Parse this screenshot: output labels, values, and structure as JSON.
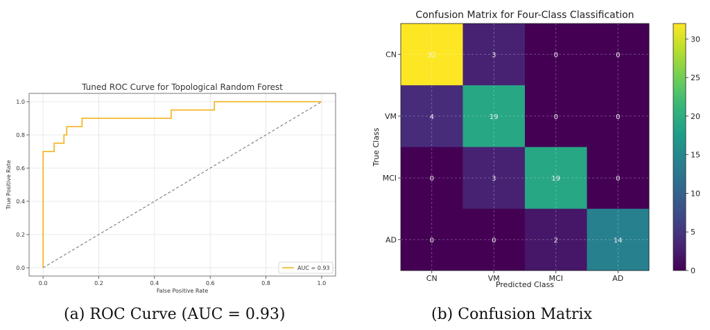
{
  "captions": {
    "left": "(a) ROC Curve (AUC = 0.93)",
    "right": "(b) Confusion Matrix"
  },
  "chart_data": [
    {
      "type": "line",
      "title": "Tuned ROC Curve for Topological Random Forest",
      "xlabel": "False Positive Rate",
      "ylabel": "True Positive Rate",
      "xlim": [
        -0.05,
        1.05
      ],
      "ylim": [
        -0.05,
        1.05
      ],
      "xticks": [
        "0.0",
        "0.2",
        "0.4",
        "0.6",
        "0.8",
        "1.0"
      ],
      "yticks": [
        "0.0",
        "0.2",
        "0.4",
        "0.6",
        "0.8",
        "1.0"
      ],
      "grid": true,
      "legend_position": "lower-right",
      "series": [
        {
          "name": "AUC = 0.93",
          "color": "#f5b82e",
          "x": [
            0.0,
            0.0,
            0.04,
            0.04,
            0.075,
            0.075,
            0.085,
            0.085,
            0.1,
            0.1,
            0.14,
            0.14,
            0.46,
            0.46,
            0.615,
            0.615,
            1.0
          ],
          "y": [
            0.0,
            0.7,
            0.7,
            0.75,
            0.75,
            0.8,
            0.8,
            0.85,
            0.85,
            0.85,
            0.85,
            0.9,
            0.9,
            0.95,
            0.95,
            1.0,
            1.0
          ]
        },
        {
          "name": "",
          "color": "#777777",
          "dashed": true,
          "x": [
            0.0,
            1.0
          ],
          "y": [
            0.0,
            1.0
          ]
        }
      ]
    },
    {
      "type": "heatmap",
      "title": "Confusion Matrix for Four-Class Classification",
      "xlabel": "Predicted Class",
      "ylabel": "True Class",
      "categories_x": [
        "CN",
        "VM",
        "MCI",
        "AD"
      ],
      "categories_y": [
        "CN",
        "VM",
        "MCI",
        "AD"
      ],
      "values": [
        [
          32,
          3,
          0,
          0
        ],
        [
          4,
          19,
          0,
          0
        ],
        [
          0,
          3,
          19,
          0
        ],
        [
          0,
          0,
          2,
          14
        ]
      ],
      "colormap": "viridis",
      "colorbar_range": [
        0,
        32
      ],
      "colorbar_ticks": [
        0,
        5,
        10,
        15,
        20,
        25,
        30
      ]
    }
  ]
}
